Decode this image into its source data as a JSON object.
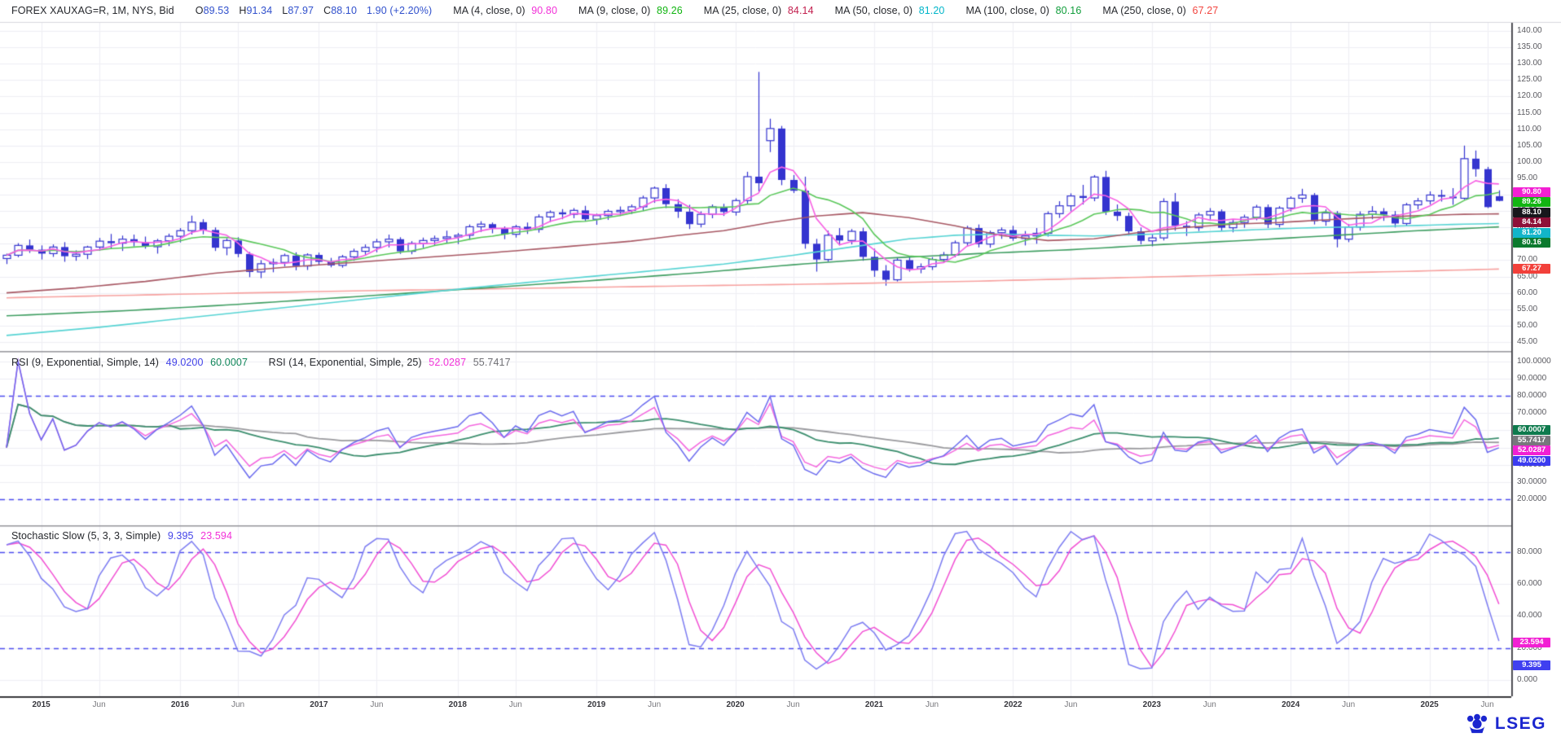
{
  "header": {
    "title": "FOREX XAUXAG=R, 1M, NYS, Bid",
    "ohlc": [
      {
        "k": "O",
        "v": "89.53"
      },
      {
        "k": "H",
        "v": "91.34"
      },
      {
        "k": "L",
        "v": "87.97"
      },
      {
        "k": "C",
        "v": "88.10"
      }
    ],
    "ohlc_color": "#3050cc",
    "change": "1.90 (+2.20%)",
    "mas": [
      {
        "label": "MA (4, close, 0)",
        "value": "90.80",
        "color": "#f230d8"
      },
      {
        "label": "MA (9, close, 0)",
        "value": "89.26",
        "color": "#11b511"
      },
      {
        "label": "MA (25, close, 0)",
        "value": "84.14",
        "color": "#c21e4d"
      },
      {
        "label": "MA (50, close, 0)",
        "value": "81.20",
        "color": "#00b5c9"
      },
      {
        "label": "MA (100, close, 0)",
        "value": "80.16",
        "color": "#0f9d3a"
      },
      {
        "label": "MA (250, close, 0)",
        "value": "67.27",
        "color": "#f2453f"
      }
    ]
  },
  "rsi": {
    "t1": "RSI (9, Exponential, Simple, 14)",
    "v1": "49.0200",
    "v1_color": "#4343e8",
    "v2": "60.0007",
    "v2_color": "#11865a",
    "t2": "RSI (14, Exponential, Simple, 25)",
    "v3": "52.0287",
    "v3_color": "#f230d8",
    "v4": "55.7417",
    "v4_color": "#6f6f74"
  },
  "stoch": {
    "t": "Stochastic Slow (5, 3, 3, Simple)",
    "v1": "9.395",
    "v1_color": "#4343e8",
    "v2": "23.594",
    "v2_color": "#f230d8"
  },
  "logo": {
    "text": "LSEG",
    "color": "#1b26cf"
  },
  "axis": {
    "main_ticks": [
      "140.00",
      "135.00",
      "130.00",
      "125.00",
      "120.00",
      "115.00",
      "110.00",
      "105.00",
      "100.00",
      "95.00",
      "90.00",
      "85.00",
      "80.00",
      "75.00",
      "70.00",
      "65.00",
      "60.00",
      "55.00",
      "50.00",
      "45.00"
    ],
    "rsi_ticks": [
      "100.0000",
      "90.0000",
      "80.0000",
      "70.0000",
      "60.0000",
      "50.0000",
      "40.0000",
      "30.0000",
      "20.0000"
    ],
    "sto_ticks": [
      "80.000",
      "60.000",
      "40.000",
      "20.000",
      "0.000"
    ],
    "xticks": [
      {
        "m": 3,
        "label": "2015",
        "year": true
      },
      {
        "m": 8,
        "label": "Jun",
        "year": false
      },
      {
        "m": 15,
        "label": "2016",
        "year": true
      },
      {
        "m": 20,
        "label": "Jun",
        "year": false
      },
      {
        "m": 27,
        "label": "2017",
        "year": true
      },
      {
        "m": 32,
        "label": "Jun",
        "year": false
      },
      {
        "m": 39,
        "label": "2018",
        "year": true
      },
      {
        "m": 44,
        "label": "Jun",
        "year": false
      },
      {
        "m": 51,
        "label": "2019",
        "year": true
      },
      {
        "m": 56,
        "label": "Jun",
        "year": false
      },
      {
        "m": 63,
        "label": "2020",
        "year": true
      },
      {
        "m": 68,
        "label": "Jun",
        "year": false
      },
      {
        "m": 75,
        "label": "2021",
        "year": true
      },
      {
        "m": 80,
        "label": "Jun",
        "year": false
      },
      {
        "m": 87,
        "label": "2022",
        "year": true
      },
      {
        "m": 92,
        "label": "Jun",
        "year": false
      },
      {
        "m": 99,
        "label": "2023",
        "year": true
      },
      {
        "m": 104,
        "label": "Jun",
        "year": false
      },
      {
        "m": 111,
        "label": "2024",
        "year": true
      },
      {
        "m": 116,
        "label": "Jun",
        "year": false
      },
      {
        "m": 123,
        "label": "2025",
        "year": true
      },
      {
        "m": 128,
        "label": "Jun",
        "year": false
      }
    ]
  },
  "badges": {
    "main": [
      {
        "value": 90.8,
        "text": "90.80",
        "bg": "#f21fd3"
      },
      {
        "value": 89.26,
        "text": "89.26",
        "bg": "#12b512"
      },
      {
        "value": 88.1,
        "text": "88.10",
        "bg": "#17171c"
      },
      {
        "value": 84.14,
        "text": "84.14",
        "bg": "#8e1038"
      },
      {
        "value": 81.2,
        "text": "81.20",
        "bg": "#12b5c9"
      },
      {
        "value": 80.16,
        "text": "80.16",
        "bg": "#0b7a2e"
      },
      {
        "value": 67.27,
        "text": "67.27",
        "bg": "#f2403a"
      }
    ],
    "rsi": [
      {
        "value": 60.0007,
        "text": "60.0007",
        "bg": "#0e7a4d"
      },
      {
        "value": 55.7417,
        "text": "55.7417",
        "bg": "#77777c"
      },
      {
        "value": 52.0287,
        "text": "52.0287",
        "bg": "#f21fd3"
      },
      {
        "value": 49.02,
        "text": "49.0200",
        "bg": "#3c3cf0"
      }
    ],
    "sto": [
      {
        "value": 23.594,
        "text": "23.594",
        "bg": "#f21fd3"
      },
      {
        "value": 9.395,
        "text": "9.395",
        "bg": "#4040f0"
      }
    ]
  },
  "chart_data": {
    "type": "candlestick",
    "instrument": "FOREX XAUXAG=R monthly (gold/silver ratio), values estimated from chart",
    "start": {
      "year": 2014,
      "month": 10
    },
    "panels": {
      "main": {
        "ylim": [
          42.5,
          142.5
        ],
        "grid_step": 5
      },
      "rsi": {
        "ylim": [
          5,
          105
        ],
        "grid_step": 10,
        "ref_lines": [
          80,
          20
        ]
      },
      "sto": {
        "ylim": [
          -10,
          95
        ],
        "grid_step": 20,
        "ref_lines": [
          80,
          20
        ]
      }
    },
    "candles": [
      [
        70.5,
        72.0,
        68.8,
        71.5
      ],
      [
        71.5,
        75.2,
        70.9,
        74.5
      ],
      [
        74.5,
        76.3,
        72.2,
        73.2
      ],
      [
        73.2,
        74.5,
        70.2,
        72.0
      ],
      [
        72.0,
        74.8,
        71.0,
        74.0
      ],
      [
        74.0,
        75.5,
        69.5,
        71.2
      ],
      [
        71.2,
        73.0,
        69.8,
        71.8
      ],
      [
        71.8,
        74.4,
        70.3,
        74.0
      ],
      [
        74.0,
        76.8,
        72.9,
        75.8
      ],
      [
        75.8,
        78.0,
        73.6,
        75.2
      ],
      [
        75.2,
        77.5,
        72.8,
        76.4
      ],
      [
        76.4,
        77.8,
        74.2,
        75.5
      ],
      [
        75.5,
        77.2,
        73.5,
        74.1
      ],
      [
        74.1,
        76.5,
        72.0,
        75.9
      ],
      [
        75.9,
        78.1,
        74.3,
        77.3
      ],
      [
        77.3,
        79.8,
        75.4,
        79.0
      ],
      [
        79.0,
        83.6,
        77.8,
        81.6
      ],
      [
        81.6,
        82.5,
        77.9,
        79.2
      ],
      [
        79.2,
        80.0,
        72.8,
        73.8
      ],
      [
        73.8,
        76.7,
        71.5,
        76.0
      ],
      [
        76.0,
        77.0,
        70.9,
        71.9
      ],
      [
        71.9,
        72.5,
        64.8,
        66.4
      ],
      [
        66.4,
        70.0,
        64.5,
        68.9
      ],
      [
        68.9,
        70.5,
        66.3,
        69.3
      ],
      [
        69.3,
        72.0,
        68.1,
        71.4
      ],
      [
        71.4,
        72.4,
        66.9,
        68.2
      ],
      [
        68.2,
        72.1,
        67.0,
        71.6
      ],
      [
        71.6,
        72.3,
        68.6,
        69.5
      ],
      [
        69.5,
        70.7,
        67.8,
        68.4
      ],
      [
        68.4,
        71.6,
        67.7,
        71.0
      ],
      [
        71.0,
        73.5,
        69.8,
        72.7
      ],
      [
        72.7,
        74.8,
        71.5,
        73.9
      ],
      [
        73.9,
        76.5,
        72.4,
        75.6
      ],
      [
        75.6,
        77.8,
        73.9,
        76.4
      ],
      [
        76.4,
        77.0,
        71.9,
        72.7
      ],
      [
        72.7,
        75.8,
        71.8,
        75.1
      ],
      [
        75.1,
        76.9,
        73.7,
        76.0
      ],
      [
        76.0,
        77.5,
        74.4,
        76.6
      ],
      [
        76.6,
        79.0,
        75.2,
        77.1
      ],
      [
        77.1,
        78.3,
        74.9,
        77.6
      ],
      [
        77.6,
        80.9,
        76.2,
        80.2
      ],
      [
        80.2,
        81.9,
        78.6,
        81.0
      ],
      [
        81.0,
        81.5,
        78.2,
        79.8
      ],
      [
        79.8,
        80.3,
        76.4,
        77.9
      ],
      [
        77.9,
        80.8,
        76.9,
        80.2
      ],
      [
        80.2,
        81.5,
        78.0,
        79.4
      ],
      [
        79.4,
        84.0,
        78.4,
        83.2
      ],
      [
        83.2,
        85.2,
        81.6,
        84.6
      ],
      [
        84.6,
        85.6,
        82.5,
        84.0
      ],
      [
        84.0,
        85.9,
        82.8,
        85.2
      ],
      [
        85.2,
        86.6,
        81.9,
        82.5
      ],
      [
        82.5,
        84.2,
        80.8,
        83.6
      ],
      [
        83.6,
        85.5,
        82.3,
        84.9
      ],
      [
        84.9,
        86.4,
        83.5,
        85.2
      ],
      [
        85.2,
        87.0,
        84.1,
        86.3
      ],
      [
        86.3,
        89.7,
        85.0,
        89.0
      ],
      [
        89.0,
        92.5,
        87.5,
        92.0
      ],
      [
        92.0,
        93.2,
        85.9,
        87.1
      ],
      [
        87.1,
        88.6,
        82.9,
        84.8
      ],
      [
        84.8,
        86.9,
        79.5,
        81.0
      ],
      [
        81.0,
        84.9,
        80.0,
        84.0
      ],
      [
        84.0,
        87.0,
        82.8,
        86.3
      ],
      [
        86.3,
        87.2,
        83.5,
        84.7
      ],
      [
        84.7,
        88.9,
        83.6,
        88.2
      ],
      [
        88.2,
        97.0,
        87.1,
        95.5
      ],
      [
        95.5,
        127.5,
        91.0,
        93.5
      ],
      [
        106.5,
        113.2,
        103.0,
        110.2
      ],
      [
        110.2,
        111.0,
        92.9,
        94.5
      ],
      [
        94.5,
        96.0,
        90.5,
        91.2
      ],
      [
        91.2,
        95.5,
        73.5,
        75.0
      ],
      [
        75.0,
        76.5,
        66.5,
        70.2
      ],
      [
        70.2,
        79.0,
        69.5,
        77.6
      ],
      [
        77.6,
        79.8,
        74.5,
        76.0
      ],
      [
        76.0,
        79.5,
        74.8,
        78.8
      ],
      [
        78.8,
        79.9,
        69.8,
        71.0
      ],
      [
        71.0,
        73.5,
        64.9,
        66.8
      ],
      [
        66.8,
        68.5,
        62.2,
        64.0
      ],
      [
        64.0,
        70.8,
        63.5,
        70.0
      ],
      [
        70.0,
        71.0,
        66.5,
        67.3
      ],
      [
        67.3,
        69.0,
        66.0,
        68.0
      ],
      [
        68.0,
        70.9,
        67.0,
        70.2
      ],
      [
        70.2,
        72.5,
        69.3,
        71.6
      ],
      [
        71.6,
        76.0,
        70.9,
        75.3
      ],
      [
        75.3,
        80.5,
        74.4,
        79.8
      ],
      [
        79.8,
        80.9,
        73.9,
        74.9
      ],
      [
        74.9,
        79.0,
        73.8,
        78.4
      ],
      [
        78.4,
        80.0,
        76.5,
        79.2
      ],
      [
        79.2,
        80.5,
        75.9,
        76.6
      ],
      [
        76.6,
        78.9,
        74.5,
        77.4
      ],
      [
        77.4,
        79.8,
        75.0,
        78.2
      ],
      [
        78.2,
        84.9,
        77.2,
        84.2
      ],
      [
        84.2,
        88.0,
        82.9,
        86.6
      ],
      [
        86.6,
        90.4,
        84.9,
        89.6
      ],
      [
        89.6,
        93.0,
        87.0,
        89.0
      ],
      [
        89.0,
        96.0,
        88.0,
        95.4
      ],
      [
        95.4,
        97.3,
        83.8,
        84.8
      ],
      [
        84.8,
        87.0,
        82.0,
        83.5
      ],
      [
        83.5,
        84.5,
        77.5,
        78.8
      ],
      [
        78.8,
        80.0,
        74.8,
        75.9
      ],
      [
        75.9,
        77.9,
        74.2,
        76.8
      ],
      [
        76.8,
        88.9,
        76.0,
        87.9
      ],
      [
        87.9,
        90.5,
        79.0,
        80.5
      ],
      [
        80.5,
        81.9,
        77.4,
        79.9
      ],
      [
        79.9,
        84.5,
        78.9,
        83.8
      ],
      [
        83.8,
        85.9,
        82.4,
        84.9
      ],
      [
        84.9,
        85.5,
        78.9,
        79.9
      ],
      [
        79.9,
        82.4,
        78.5,
        81.5
      ],
      [
        81.5,
        83.9,
        79.9,
        83.1
      ],
      [
        83.1,
        86.9,
        82.2,
        86.2
      ],
      [
        86.2,
        87.0,
        79.8,
        80.9
      ],
      [
        80.9,
        86.5,
        80.0,
        85.9
      ],
      [
        85.9,
        89.5,
        84.9,
        88.9
      ],
      [
        88.9,
        91.8,
        87.5,
        89.9
      ],
      [
        89.9,
        90.5,
        80.9,
        81.9
      ],
      [
        81.9,
        85.5,
        80.5,
        84.4
      ],
      [
        84.4,
        85.0,
        73.9,
        76.4
      ],
      [
        76.4,
        81.0,
        75.5,
        80.1
      ],
      [
        80.1,
        84.9,
        79.0,
        84.0
      ],
      [
        84.0,
        86.5,
        82.5,
        84.9
      ],
      [
        84.9,
        85.9,
        82.0,
        83.9
      ],
      [
        83.9,
        85.0,
        80.0,
        81.2
      ],
      [
        81.2,
        87.5,
        80.5,
        86.9
      ],
      [
        86.9,
        89.0,
        85.5,
        88.1
      ],
      [
        88.1,
        91.0,
        87.0,
        89.9
      ],
      [
        89.9,
        91.5,
        87.9,
        89.4
      ],
      [
        89.4,
        92.0,
        86.9,
        88.9
      ],
      [
        88.9,
        105.0,
        88.5,
        101.0
      ],
      [
        101.0,
        103.5,
        95.5,
        97.8
      ],
      [
        97.8,
        98.5,
        85.9,
        86.2
      ],
      [
        89.53,
        91.34,
        87.97,
        88.1
      ]
    ],
    "ma_keypoints": {
      "ma25": [
        [
          0,
          60.0
        ],
        [
          6,
          61.5
        ],
        [
          12,
          63.5
        ],
        [
          18,
          66.0
        ],
        [
          24,
          67.8
        ],
        [
          30,
          69.3
        ],
        [
          36,
          70.8
        ],
        [
          42,
          72.3
        ],
        [
          48,
          74.0
        ],
        [
          54,
          75.8
        ],
        [
          58,
          77.5
        ],
        [
          62,
          79.0
        ],
        [
          66,
          81.5
        ],
        [
          70,
          83.5
        ],
        [
          74,
          84.5
        ],
        [
          78,
          83.0
        ],
        [
          82,
          80.5
        ],
        [
          86,
          77.5
        ],
        [
          90,
          76.0
        ],
        [
          94,
          76.5
        ],
        [
          98,
          78.5
        ],
        [
          102,
          80.0
        ],
        [
          106,
          81.0
        ],
        [
          110,
          81.5
        ],
        [
          114,
          82.3
        ],
        [
          118,
          83.0
        ],
        [
          122,
          83.6
        ],
        [
          126,
          84.0
        ],
        [
          129,
          84.14
        ]
      ],
      "ma50": [
        [
          0,
          47.0
        ],
        [
          8,
          49.5
        ],
        [
          16,
          52.5
        ],
        [
          24,
          55.5
        ],
        [
          32,
          58.5
        ],
        [
          40,
          61.5
        ],
        [
          48,
          64.2
        ],
        [
          56,
          66.8
        ],
        [
          62,
          68.8
        ],
        [
          68,
          71.5
        ],
        [
          74,
          74.5
        ],
        [
          78,
          76.5
        ],
        [
          82,
          77.6
        ],
        [
          86,
          78.0
        ],
        [
          90,
          77.6
        ],
        [
          94,
          77.4
        ],
        [
          98,
          77.8
        ],
        [
          102,
          78.4
        ],
        [
          106,
          79.0
        ],
        [
          110,
          79.6
        ],
        [
          114,
          80.0
        ],
        [
          118,
          80.2
        ],
        [
          122,
          80.6
        ],
        [
          126,
          81.0
        ],
        [
          129,
          81.2
        ]
      ],
      "ma100": [
        [
          0,
          53.0
        ],
        [
          10,
          54.5
        ],
        [
          20,
          56.5
        ],
        [
          30,
          58.8
        ],
        [
          40,
          61.2
        ],
        [
          50,
          63.6
        ],
        [
          60,
          66.2
        ],
        [
          68,
          68.6
        ],
        [
          76,
          70.6
        ],
        [
          84,
          72.0
        ],
        [
          92,
          73.2
        ],
        [
          100,
          74.8
        ],
        [
          108,
          76.2
        ],
        [
          116,
          77.8
        ],
        [
          122,
          79.0
        ],
        [
          129,
          80.16
        ]
      ],
      "ma250": [
        [
          0,
          58.5
        ],
        [
          15,
          59.6
        ],
        [
          30,
          60.6
        ],
        [
          45,
          61.4
        ],
        [
          60,
          62.2
        ],
        [
          72,
          62.8
        ],
        [
          84,
          63.6
        ],
        [
          96,
          64.6
        ],
        [
          108,
          65.6
        ],
        [
          120,
          66.5
        ],
        [
          129,
          67.27
        ]
      ]
    },
    "colors": {
      "candle": "#3434cf",
      "ma4": "#f75fe3",
      "ma9": "#5bc85b",
      "ma25": "#a85864",
      "ma50": "#57d4d4",
      "ma100": "#3f9e62",
      "ma250": "#f7a2a0",
      "rsi9": "#6b6bef",
      "rsi9ma": "#3d8f6f",
      "rsi14": "#f466df",
      "rsi14ma": "#9a9a9e",
      "stoK": "#7d7df2",
      "stoD": "#f24fd4",
      "dash": "#4d4df0",
      "grid": "#eeeef3",
      "sep": "#9a9aa0",
      "axisline": "#3c3c42"
    }
  }
}
